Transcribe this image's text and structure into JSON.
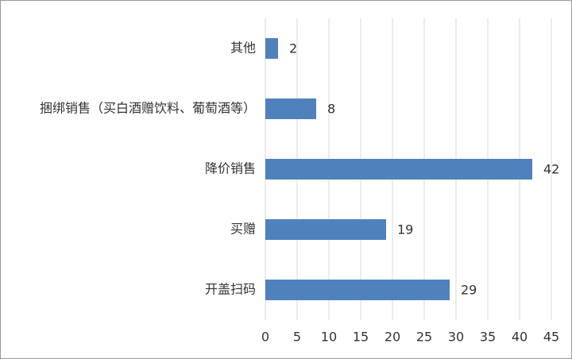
{
  "chart_data": {
    "type": "hbar",
    "categories": [
      "其他",
      "捆绑销售（买白酒赠饮料、葡萄酒等）",
      "降价销售",
      "买赠",
      "开盖扫码"
    ],
    "values": [
      2,
      8,
      42,
      19,
      29
    ],
    "color": "#4f81bd",
    "xlim": [
      0,
      45
    ],
    "xticks": [
      0,
      5,
      10,
      15,
      20,
      25,
      30,
      35,
      40,
      45
    ],
    "grid": true
  }
}
